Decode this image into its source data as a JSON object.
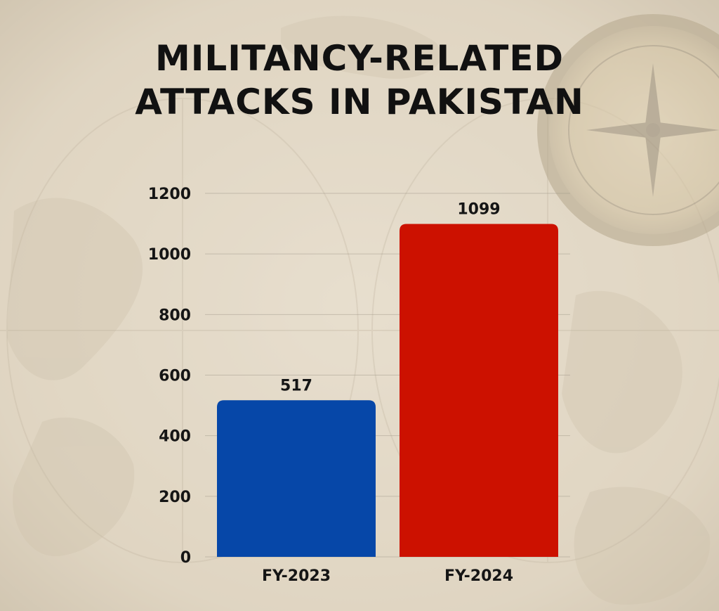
{
  "title_lines": [
    "MILITANCY-RELATED",
    "ATTACKS IN PAKISTAN"
  ],
  "colors": {
    "bar_fy2023": "#0647a8",
    "bar_fy2024": "#cc1100",
    "text": "#151515",
    "background": "#d9cfbd"
  },
  "background_image": "vintage-world-map-with-compass",
  "chart_data": {
    "type": "bar",
    "title": "MILITANCY-RELATED ATTACKS IN PAKISTAN",
    "categories": [
      "FY-2023",
      "FY-2024"
    ],
    "values": [
      517,
      1099
    ],
    "data_labels": [
      "517",
      "1099"
    ],
    "bar_colors": [
      "#0647a8",
      "#cc1100"
    ],
    "ylim": [
      0,
      1200
    ],
    "yticks": [
      0,
      200,
      400,
      600,
      800,
      1000,
      1200
    ],
    "ytick_labels": [
      "0",
      "200",
      "400",
      "600",
      "800",
      "1000",
      "1200"
    ],
    "xlabel": "",
    "ylabel": "",
    "grid": true,
    "legend": "none"
  }
}
